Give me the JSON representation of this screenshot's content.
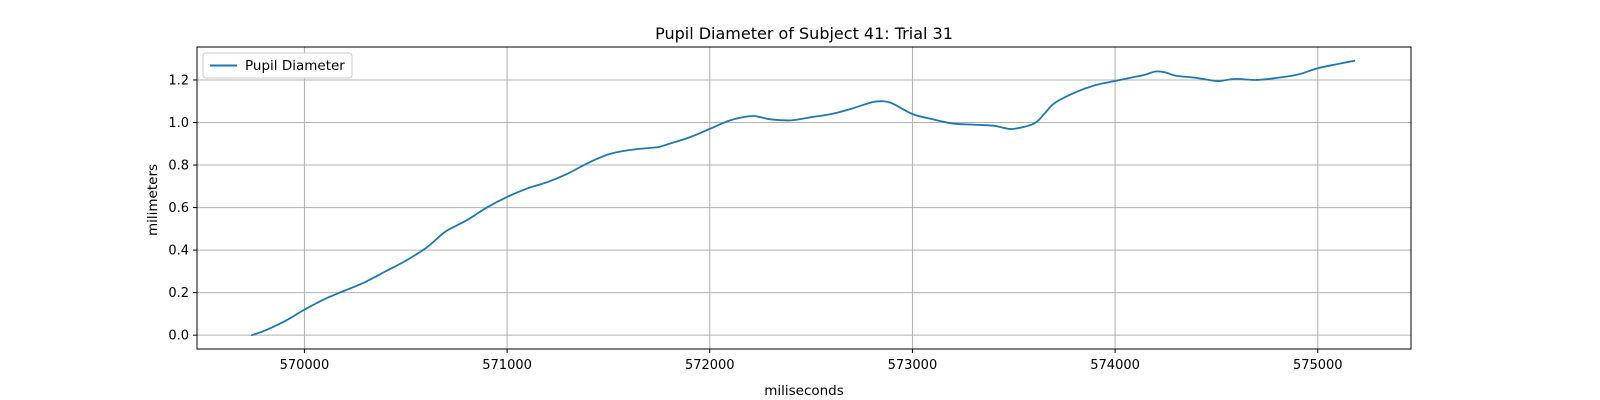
{
  "chart_data": {
    "type": "line",
    "title": "Pupil Diameter of Subject 41: Trial 31",
    "xlabel": "miliseconds",
    "ylabel": "milimeters",
    "xlim": [
      569470,
      575460
    ],
    "ylim": [
      -0.065,
      1.355
    ],
    "xticks": [
      570000,
      571000,
      572000,
      573000,
      574000,
      575000
    ],
    "xtick_labels": [
      "570000",
      "571000",
      "572000",
      "573000",
      "574000",
      "575000"
    ],
    "yticks": [
      0.0,
      0.2,
      0.4,
      0.6,
      0.8,
      1.0,
      1.2
    ],
    "ytick_labels": [
      "0.0",
      "0.2",
      "0.4",
      "0.6",
      "0.8",
      "1.0",
      "1.2"
    ],
    "grid": true,
    "legend": {
      "position": "top-left",
      "entries": [
        "Pupil Diameter"
      ]
    },
    "series": [
      {
        "name": "Pupil Diameter",
        "color": "#1f77b4",
        "x": [
          569740,
          569800,
          569870,
          569930,
          570000,
          570100,
          570200,
          570300,
          570400,
          570500,
          570600,
          570650,
          570700,
          570800,
          570900,
          571000,
          571100,
          571200,
          571300,
          571400,
          571500,
          571600,
          571700,
          571750,
          571800,
          571900,
          572000,
          572100,
          572200,
          572250,
          572300,
          572400,
          572500,
          572600,
          572700,
          572800,
          572850,
          572900,
          573000,
          573100,
          573200,
          573300,
          573400,
          573450,
          573500,
          573600,
          573650,
          573700,
          573800,
          573900,
          574000,
          574100,
          574150,
          574200,
          574250,
          574300,
          574400,
          574500,
          574550,
          574600,
          574700,
          574800,
          574900,
          575000,
          575100,
          575180
        ],
        "y": [
          0.0,
          0.02,
          0.05,
          0.08,
          0.12,
          0.17,
          0.21,
          0.25,
          0.3,
          0.35,
          0.41,
          0.45,
          0.49,
          0.54,
          0.6,
          0.65,
          0.69,
          0.72,
          0.76,
          0.81,
          0.85,
          0.87,
          0.88,
          0.885,
          0.9,
          0.93,
          0.97,
          1.01,
          1.03,
          1.025,
          1.015,
          1.01,
          1.025,
          1.04,
          1.065,
          1.095,
          1.1,
          1.09,
          1.04,
          1.015,
          0.995,
          0.99,
          0.985,
          0.975,
          0.97,
          0.995,
          1.04,
          1.09,
          1.14,
          1.175,
          1.195,
          1.215,
          1.225,
          1.24,
          1.235,
          1.22,
          1.21,
          1.195,
          1.2,
          1.205,
          1.2,
          1.21,
          1.225,
          1.255,
          1.275,
          1.29
        ]
      }
    ]
  }
}
